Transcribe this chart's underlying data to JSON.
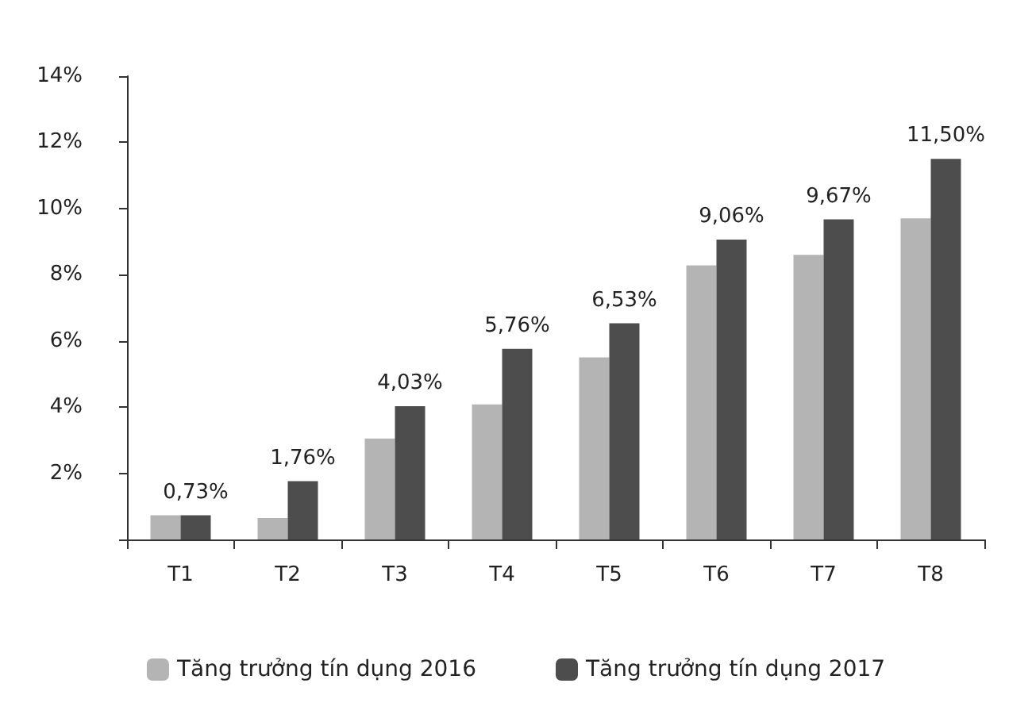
{
  "chart_data": {
    "type": "bar",
    "categories": [
      "T1",
      "T2",
      "T3",
      "T4",
      "T5",
      "T6",
      "T7",
      "T8"
    ],
    "series": [
      {
        "name": "Tăng trưởng tín dụng 2016",
        "color": "#b4b4b4",
        "values": [
          0.73,
          0.65,
          3.05,
          4.08,
          5.5,
          8.28,
          8.6,
          9.7
        ]
      },
      {
        "name": "Tăng trưởng tín dụng 2017",
        "color": "#4d4d4d",
        "values": [
          0.73,
          1.76,
          4.03,
          5.76,
          6.53,
          9.06,
          9.67,
          11.5
        ],
        "value_labels": [
          "0,73%",
          "1,76%",
          "4,03%",
          "5,76%",
          "6,53%",
          "9,06%",
          "9,67%",
          "11,50%"
        ]
      }
    ],
    "ylim": [
      0,
      14
    ],
    "yticks": [
      {
        "value": 0,
        "label": null
      },
      {
        "value": 2,
        "label": "2%"
      },
      {
        "value": 4,
        "label": "4%"
      },
      {
        "value": 6,
        "label": "6%"
      },
      {
        "value": 8,
        "label": "8%"
      },
      {
        "value": 10,
        "label": "10%"
      },
      {
        "value": 12,
        "label": "12%"
      },
      {
        "value": 14,
        "label": "14%"
      }
    ],
    "grid": false,
    "legend": "bottom"
  }
}
